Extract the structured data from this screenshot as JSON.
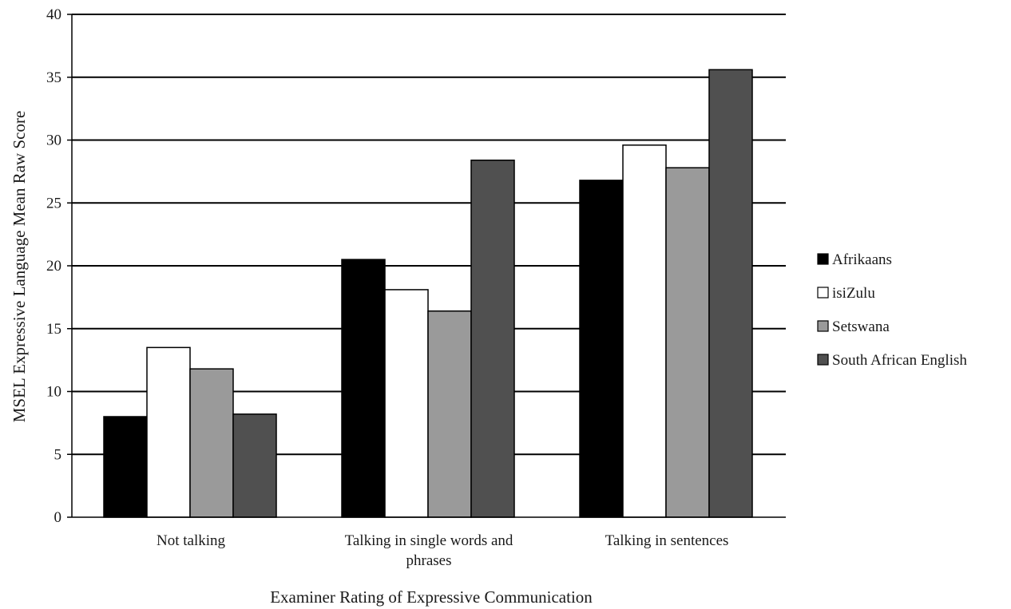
{
  "chart_data": {
    "type": "bar",
    "title": "",
    "xlabel": "Examiner Rating of Expressive Communication",
    "ylabel": "MSEL Expressive Language Mean Raw Score",
    "ylim": [
      0,
      40
    ],
    "yticks": [
      "0",
      "5",
      "10",
      "15",
      "20",
      "25",
      "30",
      "35",
      "40"
    ],
    "grid": "horizontal",
    "legend_position": "right",
    "categories": [
      [
        "Not talking"
      ],
      [
        "Talking in single words and",
        "phrases"
      ],
      [
        "Talking in sentences"
      ]
    ],
    "series": [
      {
        "name": "Afrikaans",
        "color": "#000000",
        "values": [
          8.0,
          20.5,
          26.8
        ]
      },
      {
        "name": "isiZulu",
        "color": "#ffffff",
        "values": [
          13.5,
          18.1,
          29.6
        ]
      },
      {
        "name": "Setswana",
        "color": "#9a9a9a",
        "values": [
          11.8,
          16.4,
          27.8
        ]
      },
      {
        "name": "South African English",
        "color": "#505050",
        "values": [
          8.2,
          28.4,
          35.6
        ]
      }
    ]
  }
}
